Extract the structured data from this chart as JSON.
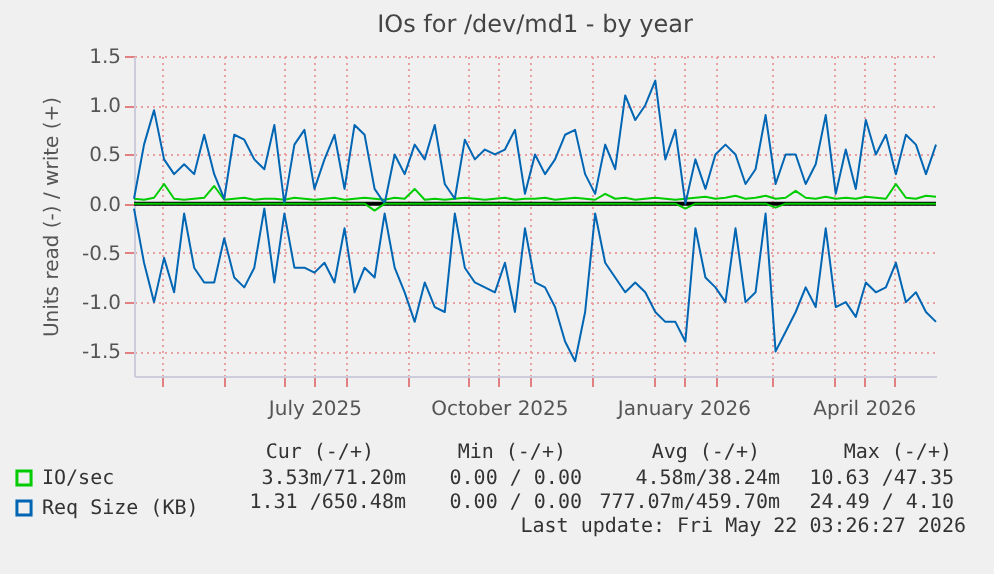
{
  "chart_data": {
    "type": "line",
    "title": "IOs for /dev/md1 - by year",
    "ylabel": "Units read (-) / write (+)",
    "x": [
      "2025-04-17",
      "2025-04-22",
      "2025-04-27",
      "2025-05-02",
      "2025-05-07",
      "2025-05-12",
      "2025-05-17",
      "2025-05-22",
      "2025-05-27",
      "2025-06-01",
      "2025-06-06",
      "2025-06-11",
      "2025-06-16",
      "2025-06-21",
      "2025-06-26",
      "2025-07-01",
      "2025-07-06",
      "2025-07-11",
      "2025-07-16",
      "2025-07-21",
      "2025-07-26",
      "2025-07-31",
      "2025-08-05",
      "2025-08-10",
      "2025-08-15",
      "2025-08-20",
      "2025-08-25",
      "2025-08-30",
      "2025-09-04",
      "2025-09-09",
      "2025-09-14",
      "2025-09-19",
      "2025-09-24",
      "2025-09-29",
      "2025-10-04",
      "2025-10-09",
      "2025-10-14",
      "2025-10-19",
      "2025-10-24",
      "2025-10-29",
      "2025-11-03",
      "2025-11-08",
      "2025-11-13",
      "2025-11-18",
      "2025-11-23",
      "2025-11-28",
      "2025-12-03",
      "2025-12-08",
      "2025-12-13",
      "2025-12-18",
      "2025-12-23",
      "2025-12-28",
      "2026-01-02",
      "2026-01-07",
      "2026-01-12",
      "2026-01-17",
      "2026-01-22",
      "2026-01-27",
      "2026-02-01",
      "2026-02-06",
      "2026-02-11",
      "2026-02-16",
      "2026-02-21",
      "2026-02-26",
      "2026-03-03",
      "2026-03-08",
      "2026-03-13",
      "2026-03-18",
      "2026-03-23",
      "2026-03-28",
      "2026-04-02",
      "2026-04-07",
      "2026-04-12",
      "2026-04-17",
      "2026-04-22",
      "2026-04-27",
      "2026-05-02",
      "2026-05-07",
      "2026-05-12",
      "2026-05-17",
      "2026-05-22"
    ],
    "series": [
      {
        "name": "IO/sec",
        "color": "#00cc00",
        "values": [
          0.05,
          0.04,
          0.06,
          0.2,
          0.05,
          0.04,
          0.05,
          0.06,
          0.18,
          0.04,
          0.05,
          0.06,
          0.04,
          0.05,
          0.05,
          0.04,
          0.06,
          0.05,
          0.04,
          0.05,
          0.06,
          0.04,
          0.05,
          0.06,
          0.05,
          0.04,
          0.06,
          0.05,
          0.15,
          0.04,
          0.05,
          0.04,
          0.05,
          0.06,
          0.05,
          0.04,
          0.05,
          0.06,
          0.04,
          0.05,
          0.05,
          0.06,
          0.04,
          0.05,
          0.06,
          0.05,
          0.04,
          0.1,
          0.05,
          0.06,
          0.04,
          0.05,
          0.06,
          0.05,
          0.04,
          0.05,
          0.06,
          0.07,
          0.05,
          0.06,
          0.08,
          0.05,
          0.06,
          0.08,
          0.05,
          0.06,
          0.13,
          0.06,
          0.05,
          0.07,
          0.05,
          0.06,
          0.05,
          0.07,
          0.06,
          0.05,
          0.2,
          0.06,
          0.05,
          0.08,
          0.07
        ]
      },
      {
        "name": "Req Size (KB)",
        "color": "#0066b3",
        "values": [
          0.05,
          0.6,
          0.95,
          0.45,
          0.3,
          0.4,
          0.3,
          0.7,
          0.3,
          0.05,
          0.7,
          0.65,
          0.45,
          0.35,
          0.8,
          0.0,
          0.6,
          0.75,
          0.15,
          0.45,
          0.7,
          0.15,
          0.8,
          0.7,
          0.15,
          0.0,
          0.5,
          0.3,
          0.6,
          0.45,
          0.8,
          0.2,
          0.05,
          0.65,
          0.45,
          0.55,
          0.5,
          0.55,
          0.75,
          0.1,
          0.5,
          0.3,
          0.45,
          0.7,
          0.75,
          0.3,
          0.1,
          0.6,
          0.35,
          1.1,
          0.85,
          1.0,
          1.25,
          0.45,
          0.75,
          0.0,
          0.45,
          0.15,
          0.5,
          0.6,
          0.5,
          0.2,
          0.35,
          0.9,
          0.2,
          0.5,
          0.5,
          0.2,
          0.4,
          0.9,
          0.1,
          0.55,
          0.15,
          0.85,
          0.5,
          0.7,
          0.3,
          0.7,
          0.6,
          0.3,
          0.6
        ]
      },
      {
        "color": "#00cc00",
        "values": [
          0,
          0,
          0,
          0,
          0,
          0,
          0,
          0,
          0,
          0,
          0,
          0,
          0,
          0,
          0,
          0,
          0,
          0,
          0,
          0,
          0,
          0,
          0,
          0,
          -0.07,
          0,
          0,
          0,
          0,
          0,
          0,
          0,
          0,
          0,
          0,
          0,
          0,
          0,
          0,
          0,
          0,
          0,
          0,
          0,
          0,
          0,
          0,
          0,
          0,
          0,
          0,
          0,
          0,
          0,
          0,
          -0.05,
          0,
          0,
          0,
          0,
          0,
          0,
          0,
          0,
          -0.04,
          0,
          0,
          0,
          0,
          0,
          0,
          0,
          0,
          0,
          0,
          0,
          0,
          0,
          0,
          0,
          0
        ]
      },
      {
        "color": "#0066b3",
        "values": [
          -0.05,
          -0.6,
          -1.0,
          -0.55,
          -0.9,
          -0.1,
          -0.65,
          -0.8,
          -0.8,
          -0.35,
          -0.75,
          -0.85,
          -0.65,
          -0.05,
          -0.8,
          -0.1,
          -0.65,
          -0.65,
          -0.7,
          -0.6,
          -0.8,
          -0.25,
          -0.9,
          -0.65,
          -0.75,
          -0.1,
          -0.65,
          -0.9,
          -1.2,
          -0.8,
          -1.05,
          -1.1,
          -0.1,
          -0.65,
          -0.8,
          -0.85,
          -0.9,
          -0.6,
          -1.1,
          -0.25,
          -0.8,
          -0.85,
          -1.05,
          -1.4,
          -1.6,
          -1.1,
          -0.1,
          -0.6,
          -0.75,
          -0.9,
          -0.8,
          -0.9,
          -1.1,
          -1.2,
          -1.2,
          -1.4,
          -0.25,
          -0.75,
          -0.85,
          -1.0,
          -0.25,
          -1.0,
          -0.9,
          -0.1,
          -1.5,
          -1.3,
          -1.1,
          -0.85,
          -1.05,
          -0.25,
          -1.05,
          -1.0,
          -1.15,
          -0.8,
          -0.9,
          -0.85,
          -0.6,
          -1.0,
          -0.9,
          -1.1,
          -1.2
        ]
      }
    ],
    "xlim": [
      "2025-04-17",
      "2026-05-22"
    ],
    "xticks": [
      {
        "value": "2025-05-01",
        "label": null
      },
      {
        "value": "2025-06-01",
        "label": null
      },
      {
        "value": "2025-07-01",
        "label": null
      },
      {
        "value": "2025-07-16",
        "label": "July 2025"
      },
      {
        "value": "2025-08-01",
        "label": null
      },
      {
        "value": "2025-09-01",
        "label": null
      },
      {
        "value": "2025-10-01",
        "label": null
      },
      {
        "value": "2025-10-16",
        "label": "October 2025"
      },
      {
        "value": "2025-11-01",
        "label": null
      },
      {
        "value": "2025-12-01",
        "label": null
      },
      {
        "value": "2026-01-01",
        "label": null
      },
      {
        "value": "2026-01-16",
        "label": "January 2026"
      },
      {
        "value": "2026-02-01",
        "label": null
      },
      {
        "value": "2026-03-01",
        "label": null
      },
      {
        "value": "2026-04-01",
        "label": null
      },
      {
        "value": "2026-04-16",
        "label": "April 2026"
      },
      {
        "value": "2026-05-01",
        "label": null
      }
    ],
    "ylim": [
      -1.75,
      1.5
    ],
    "yticks": [
      -1.5,
      {
        "value": -1,
        "label": "-1.0"
      },
      -0.5,
      {
        "value": 0,
        "label": "0.0"
      },
      0.5,
      {
        "value": 1,
        "label": "1.0"
      },
      1.5
    ],
    "grid": true,
    "legend": "bottom",
    "ref_lines": [
      {
        "axis": "y",
        "value": 0,
        "color": "#000000"
      }
    ],
    "annotations": [
      "Cur (-/+)",
      "Min (-/+)",
      "Avg (-/+)",
      "Max (-/+)",
      "3.53m/71.20m",
      "0.00 / 0.00",
      "4.58m/38.24m",
      "10.63 /47.35",
      "1.31 /650.48m",
      "0.00 / 0.00",
      "777.07m/459.70m",
      "24.49 / 4.10",
      "Last update: Fri May 22 03:26:27 2026"
    ]
  }
}
